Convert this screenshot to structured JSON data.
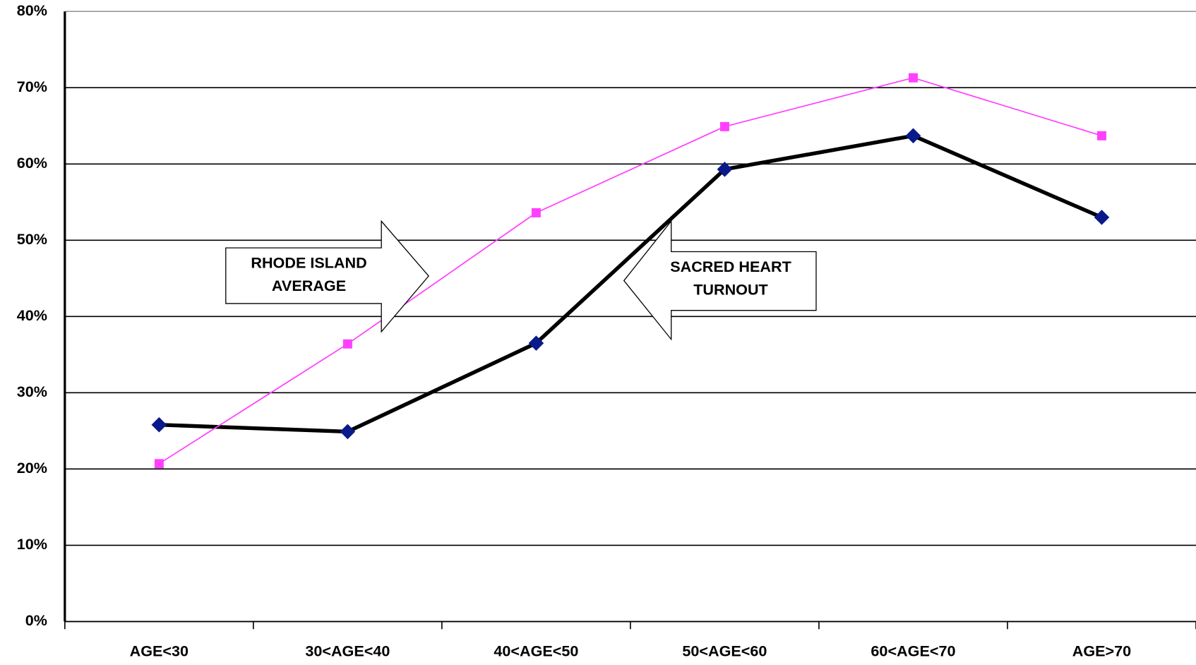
{
  "chart_data": {
    "type": "line",
    "categories": [
      "AGE<30",
      "30<AGE<40",
      "40<AGE<50",
      "50<AGE<60",
      "60<AGE<70",
      "AGE>70"
    ],
    "series": [
      {
        "color": "#000000",
        "marker_color": "#0a1a8a",
        "marker": "diamond",
        "values": [
          25.8,
          24.9,
          36.5,
          59.3,
          63.7,
          53.0
        ]
      },
      {
        "color": "#ff40ff",
        "marker_color": "#ff40ff",
        "marker": "square",
        "values": [
          20.7,
          36.4,
          53.6,
          64.9,
          71.3,
          63.7
        ]
      }
    ],
    "ylim": [
      0,
      80
    ],
    "yticks": [
      {
        "value": 0,
        "label": "0%"
      },
      {
        "value": 10,
        "label": "10%"
      },
      {
        "value": 20,
        "label": "20%"
      },
      {
        "value": 30,
        "label": "30%"
      },
      {
        "value": 40,
        "label": "40%"
      },
      {
        "value": 50,
        "label": "50%"
      },
      {
        "value": 60,
        "label": "60%"
      },
      {
        "value": 70,
        "label": "70%"
      },
      {
        "value": 80,
        "label": "80%"
      }
    ],
    "grid": true,
    "annotations": [
      {
        "lines": [
          "RHODE ISLAND",
          "AVERAGE"
        ],
        "arrow": "right"
      },
      {
        "lines": [
          "SACRED HEART",
          "TURNOUT"
        ],
        "arrow": "left"
      }
    ]
  }
}
